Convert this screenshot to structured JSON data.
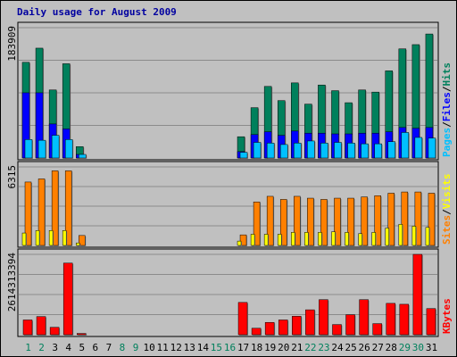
{
  "chart_data": {
    "type": "bar",
    "title": "Daily usage for August 2009",
    "categories": [
      "1",
      "2",
      "3",
      "4",
      "5",
      "6",
      "7",
      "8",
      "9",
      "10",
      "11",
      "12",
      "13",
      "14",
      "15",
      "16",
      "17",
      "18",
      "19",
      "20",
      "21",
      "22",
      "23",
      "24",
      "25",
      "26",
      "27",
      "28",
      "29",
      "30",
      "31"
    ],
    "weekend_days": [
      1,
      2,
      8,
      9,
      15,
      16,
      22,
      23,
      29,
      30
    ],
    "colors": {
      "hits": "#00805c",
      "files": "#0000ff",
      "pages": "#00c0ff",
      "visits": "#ffff00",
      "sites": "#ff8000",
      "kbytes": "#ff0000",
      "weekday_label": "#000000",
      "weekend_label": "#00805c",
      "title": "#0000a0"
    },
    "panels": [
      {
        "id": "hits-files-pages",
        "max_label": "183909",
        "ylim": [
          0,
          183909
        ],
        "legend": [
          {
            "text": "Pages",
            "color": "#00c0ff"
          },
          {
            "text": "/",
            "color": "#000000"
          },
          {
            "text": "Files",
            "color": "#0000ff"
          },
          {
            "text": "/",
            "color": "#000000"
          },
          {
            "text": "Hits",
            "color": "#00805c"
          }
        ],
        "series": [
          {
            "name": "Hits",
            "values": [
              135000,
              155000,
              96000,
              133000,
              16000,
              0,
              0,
              0,
              0,
              0,
              0,
              0,
              0,
              0,
              0,
              0,
              30000,
              71000,
              101000,
              81000,
              106000,
              76000,
              103000,
              95000,
              78000,
              96000,
              93000,
              123000,
              154000,
              160000,
              175000
            ]
          },
          {
            "name": "Files",
            "values": [
              92000,
              92000,
              48000,
              41000,
              5000,
              0,
              0,
              0,
              0,
              0,
              0,
              0,
              0,
              0,
              0,
              0,
              9000,
              33000,
              37000,
              32000,
              38000,
              35000,
              35000,
              34000,
              34000,
              35000,
              35000,
              37000,
              43000,
              42000,
              43000
            ]
          },
          {
            "name": "Pages",
            "values": [
              26000,
              25000,
              32000,
              26000,
              5000,
              0,
              0,
              0,
              0,
              0,
              0,
              0,
              0,
              0,
              0,
              0,
              8000,
              22000,
              21000,
              19000,
              21000,
              24000,
              21000,
              22000,
              21000,
              20000,
              20000,
              23000,
              36000,
              29000,
              28000
            ]
          }
        ]
      },
      {
        "id": "sites-visits",
        "max_label": "6315",
        "ylim": [
          0,
          6315
        ],
        "legend": [
          {
            "text": "Sites",
            "color": "#ff8000"
          },
          {
            "text": "/",
            "color": "#000000"
          },
          {
            "text": "Visits",
            "color": "#ffff00"
          }
        ],
        "series": [
          {
            "name": "Sites",
            "values": [
              5100,
              5350,
              6000,
              6000,
              800,
              0,
              0,
              0,
              0,
              0,
              0,
              0,
              0,
              0,
              0,
              0,
              850,
              3500,
              3950,
              3700,
              3950,
              3800,
              3700,
              3800,
              3800,
              3900,
              4000,
              4200,
              4300,
              4300,
              4200
            ]
          },
          {
            "name": "Visits",
            "values": [
              1000,
              1200,
              1200,
              1200,
              200,
              0,
              0,
              0,
              0,
              0,
              0,
              0,
              0,
              0,
              0,
              0,
              350,
              900,
              900,
              900,
              1050,
              1050,
              1050,
              1100,
              1050,
              950,
              1050,
              1400,
              1700,
              1550,
              1450
            ]
          }
        ]
      },
      {
        "id": "kbytes",
        "max_label": "2614313394",
        "ylim": [
          0,
          2614313394
        ],
        "legend": [
          {
            "text": "KBytes",
            "color": "#ff0000"
          }
        ],
        "series": [
          {
            "name": "KBytes",
            "values": [
              480000000,
              590000000,
              240000000,
              2330000000,
              40000000,
              0,
              0,
              0,
              0,
              0,
              0,
              0,
              0,
              0,
              0,
              0,
              1050000000,
              210000000,
              400000000,
              480000000,
              600000000,
              810000000,
              1140000000,
              330000000,
              650000000,
              1140000000,
              360000000,
              1020000000,
              990000000,
              2614313394,
              850000000
            ]
          }
        ]
      }
    ]
  }
}
